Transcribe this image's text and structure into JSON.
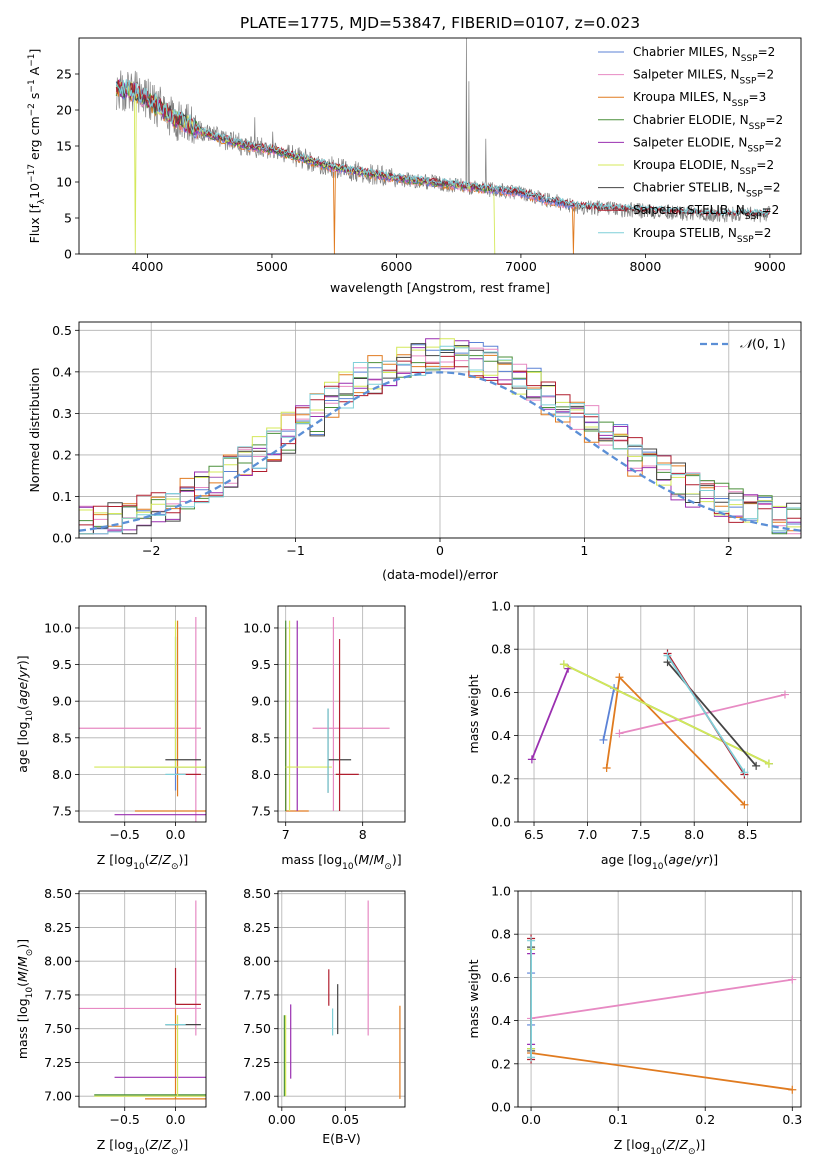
{
  "figure_title": "PLATE=1775, MJD=53847, FIBERID=0107, z=0.023",
  "colors": {
    "Chabrier MILES": "#5b82d6",
    "Salpeter MILES": "#e78ac3",
    "Kroupa MILES": "#e07b20",
    "Chabrier ELODIE": "#4a8f3a",
    "Salpeter ELODIE": "#9a2fb0",
    "Kroupa ELODIE": "#d4e85a",
    "Chabrier STELIB": "#444444",
    "Salpeter STELIB": "#b01e2e",
    "Kroupa STELIB": "#7fcfd8",
    "data": "#808080",
    "normal": "#5b8fd6"
  },
  "chart_data": [
    {
      "id": "spectrum",
      "type": "line",
      "title": "PLATE=1775, MJD=53847, FIBERID=0107, z=0.023",
      "xlabel": "wavelength [Angstrom, rest frame]",
      "ylabel": "Flux [fλ10⁻¹⁷ erg cm⁻² s⁻¹ A⁻¹]",
      "xlim": [
        3450,
        9250
      ],
      "ylim": [
        0,
        30
      ],
      "xticks": [
        4000,
        5000,
        6000,
        7000,
        8000,
        9000
      ],
      "yticks": [
        0,
        5,
        10,
        15,
        20,
        25
      ],
      "grid": false,
      "legend_position": "top-right",
      "legend": [
        "Chabrier MILES, N_SSP=2",
        "Salpeter MILES, N_SSP=2",
        "Kroupa MILES, N_SSP=3",
        "Chabrier ELODIE, N_SSP=2",
        "Salpeter ELODIE, N_SSP=2",
        "Kroupa ELODIE, N_SSP=2",
        "Chabrier STELIB, N_SSP=2",
        "Salpeter STELIB, N_SSP=2",
        "Kroupa STELIB, N_SSP=2"
      ],
      "model_continuum": {
        "x": [
          3750,
          3900,
          4000,
          4200,
          4500,
          4800,
          5000,
          5500,
          6000,
          6500,
          7000,
          7200,
          7500,
          8000,
          8500,
          9000
        ],
        "y": [
          23,
          22.5,
          21.5,
          19,
          16.5,
          15,
          14.5,
          12,
          10.5,
          9.5,
          8.5,
          7.5,
          6.5,
          6.0,
          5.5,
          5.5
        ]
      },
      "emission_lines": [
        {
          "x": 6563,
          "y": 30
        },
        {
          "x": 6583,
          "y": 24
        },
        {
          "x": 4861,
          "y": 19
        },
        {
          "x": 6717,
          "y": 16
        },
        {
          "x": 5007,
          "y": 17
        }
      ],
      "model_dropouts": [
        {
          "x": 3900,
          "label": "Kroupa ELODIE"
        },
        {
          "x": 5500,
          "label": "Kroupa MILES"
        },
        {
          "x": 6790,
          "label": "Kroupa ELODIE"
        },
        {
          "x": 7420,
          "label": "Kroupa MILES"
        }
      ]
    },
    {
      "id": "residuals",
      "type": "line",
      "xlabel": "(data-model)/error",
      "ylabel": "Normed distribution",
      "xlim": [
        -2.5,
        2.5
      ],
      "ylim": [
        0,
        0.52
      ],
      "xticks": [
        -2,
        -1,
        0,
        1,
        2
      ],
      "yticks": [
        0.0,
        0.1,
        0.2,
        0.3,
        0.4,
        0.5
      ],
      "grid": true,
      "legend_position": "top-right",
      "legend": [
        "𝒩(0, 1)"
      ],
      "normal": {
        "mean": 0,
        "sigma": 1
      }
    },
    {
      "id": "age-vs-Z",
      "type": "scatter",
      "xlabel": "Z [log₁₀(Z/Z⊙)]",
      "ylabel": "age  [log₁₀(age/yr)]",
      "xlim": [
        -0.95,
        0.3
      ],
      "ylim": [
        7.35,
        10.3
      ],
      "xticks": [
        -0.5,
        0.0
      ],
      "yticks": [
        7.5,
        8.0,
        8.5,
        9.0,
        9.5,
        10.0
      ],
      "grid": true,
      "points": [
        {
          "model": "Chabrier MILES",
          "x": 0.0,
          "y": 9.88,
          "xerr": [
            0.0,
            0.0
          ],
          "yerr": [
            2.1,
            0.0
          ]
        },
        {
          "model": "Chabrier MILES",
          "x": 0.0,
          "y": 8.12,
          "xerr": [
            0.0,
            0.0
          ],
          "yerr": [
            0.0,
            0.0
          ]
        },
        {
          "model": "Salpeter MILES",
          "x": 0.0,
          "y": 8.63,
          "xerr": [
            0.95,
            0.25
          ],
          "yerr": [
            0.0,
            0.0
          ]
        },
        {
          "model": "Salpeter MILES",
          "x": 0.2,
          "y": 7.6,
          "xerr": [
            0.0,
            0.0
          ],
          "yerr": [
            0.3,
            2.55
          ]
        },
        {
          "model": "Kroupa MILES",
          "x": 0.0,
          "y": 7.5,
          "xerr": [
            0.4,
            0.3
          ],
          "yerr": [
            0.0,
            0.0
          ]
        },
        {
          "model": "Kroupa MILES",
          "x": 0.02,
          "y": 8.8,
          "xerr": [
            0.0,
            0.0
          ],
          "yerr": [
            1.1,
            1.3
          ]
        },
        {
          "model": "Chabrier ELODIE",
          "x": 0.0,
          "y": 8.1,
          "xerr": [
            0.45,
            0.3
          ],
          "yerr": [
            0.0,
            0.0
          ]
        },
        {
          "model": "Salpeter ELODIE",
          "x": -0.1,
          "y": 7.45,
          "xerr": [
            0.5,
            0.4
          ],
          "yerr": [
            0.0,
            0.0
          ]
        },
        {
          "model": "Kroupa ELODIE",
          "x": 0.0,
          "y": 8.1,
          "xerr": [
            0.8,
            0.35
          ],
          "yerr": [
            0.0,
            2.0
          ]
        },
        {
          "model": "Chabrier STELIB",
          "x": 0.0,
          "y": 8.2,
          "xerr": [
            0.1,
            0.25
          ],
          "yerr": [
            0.0,
            0.0
          ]
        },
        {
          "model": "Salpeter STELIB",
          "x": 0.0,
          "y": 8.0,
          "xerr": [
            0.0,
            0.25
          ],
          "yerr": [
            0.0,
            0.0
          ]
        },
        {
          "model": "Kroupa STELIB",
          "x": 0.0,
          "y": 8.0,
          "xerr": [
            0.1,
            0.1
          ],
          "yerr": [
            0.0,
            0.0
          ]
        }
      ]
    },
    {
      "id": "age-vs-mass",
      "type": "scatter",
      "xlabel": "mass [log₁₀(M/M⊙)]",
      "ylabel": "",
      "xlim": [
        6.9,
        8.55
      ],
      "ylim": [
        7.35,
        10.3
      ],
      "xticks": [
        7,
        8
      ],
      "yticks": [
        7.5,
        8.0,
        8.5,
        9.0,
        9.5,
        10.0
      ],
      "grid": true,
      "points": [
        {
          "model": "Salpeter MILES",
          "x": 7.85,
          "y": 8.63,
          "xerr": [
            0.5,
            0.5
          ],
          "yerr": [
            0.0,
            0.0
          ]
        },
        {
          "model": "Salpeter MILES",
          "x": 7.62,
          "y": 8.8,
          "xerr": [
            0.0,
            0.0
          ],
          "yerr": [
            1.3,
            1.35
          ]
        },
        {
          "model": "Kroupa MILES",
          "x": 7.0,
          "y": 8.8,
          "xerr": [
            0.0,
            0.0
          ],
          "yerr": [
            1.3,
            1.2
          ]
        },
        {
          "model": "Kroupa MILES",
          "x": 7.3,
          "y": 7.5,
          "xerr": [
            0.3,
            0.0
          ],
          "yerr": [
            0.0,
            0.0
          ]
        },
        {
          "model": "Chabrier ELODIE",
          "x": 7.0,
          "y": 8.8,
          "xerr": [
            0.0,
            0.0
          ],
          "yerr": [
            1.3,
            1.3
          ]
        },
        {
          "model": "Salpeter ELODIE",
          "x": 7.15,
          "y": 8.8,
          "xerr": [
            0.0,
            0.0
          ],
          "yerr": [
            1.3,
            1.3
          ]
        },
        {
          "model": "Kroupa ELODIE",
          "x": 7.05,
          "y": 8.8,
          "xerr": [
            0.0,
            0.0
          ],
          "yerr": [
            1.3,
            1.3
          ]
        },
        {
          "model": "Kroupa ELODIE",
          "x": 7.3,
          "y": 8.1,
          "xerr": [
            0.3,
            0.3
          ],
          "yerr": [
            0.0,
            0.0
          ]
        },
        {
          "model": "Chabrier STELIB",
          "x": 7.55,
          "y": 8.8,
          "xerr": [
            0.0,
            0.0
          ],
          "yerr": [
            1.05,
            0.1
          ]
        },
        {
          "model": "Chabrier STELIB",
          "x": 7.7,
          "y": 8.2,
          "xerr": [
            0.15,
            0.15
          ],
          "yerr": [
            0.0,
            0.0
          ]
        },
        {
          "model": "Salpeter STELIB",
          "x": 7.7,
          "y": 8.7,
          "xerr": [
            0.0,
            0.0
          ],
          "yerr": [
            1.2,
            1.15
          ]
        },
        {
          "model": "Salpeter STELIB",
          "x": 7.8,
          "y": 8.0,
          "xerr": [
            0.15,
            0.15
          ],
          "yerr": [
            0.0,
            0.0
          ]
        },
        {
          "model": "Kroupa STELIB",
          "x": 7.55,
          "y": 8.8,
          "xerr": [
            0.0,
            0.0
          ],
          "yerr": [
            1.05,
            0.1
          ]
        }
      ]
    },
    {
      "id": "weight-vs-age",
      "type": "line",
      "xlabel": "age  [log₁₀(age/yr)]",
      "ylabel": "mass weight",
      "xlim": [
        6.35,
        9.0
      ],
      "ylim": [
        0,
        1.0
      ],
      "xticks": [
        6.5,
        7.0,
        7.5,
        8.0,
        8.5
      ],
      "yticks": [
        0.0,
        0.2,
        0.4,
        0.6,
        0.8,
        1.0
      ],
      "grid": true,
      "series": [
        {
          "model": "Chabrier MILES",
          "x": [
            7.15,
            7.25
          ],
          "y": [
            0.38,
            0.62
          ]
        },
        {
          "model": "Salpeter MILES",
          "x": [
            7.3,
            8.85
          ],
          "y": [
            0.41,
            0.59
          ]
        },
        {
          "model": "Kroupa MILES",
          "x": [
            7.18,
            7.3,
            8.47
          ],
          "y": [
            0.25,
            0.67,
            0.08
          ]
        },
        {
          "model": "Chabrier ELODIE",
          "x": [
            6.78,
            8.7
          ],
          "y": [
            0.73,
            0.27
          ]
        },
        {
          "model": "Salpeter ELODIE",
          "x": [
            6.48,
            6.82
          ],
          "y": [
            0.29,
            0.71
          ]
        },
        {
          "model": "Kroupa ELODIE",
          "x": [
            6.78,
            8.7
          ],
          "y": [
            0.73,
            0.27
          ]
        },
        {
          "model": "Chabrier STELIB",
          "x": [
            7.75,
            8.58
          ],
          "y": [
            0.74,
            0.26
          ]
        },
        {
          "model": "Salpeter STELIB",
          "x": [
            7.75,
            8.47
          ],
          "y": [
            0.78,
            0.22
          ]
        },
        {
          "model": "Kroupa STELIB",
          "x": [
            7.75,
            8.47
          ],
          "y": [
            0.77,
            0.23
          ]
        }
      ]
    },
    {
      "id": "mass-vs-Z",
      "type": "scatter",
      "xlabel": "Z [log₁₀(Z/Z⊙)]",
      "ylabel": "mass [log₁₀(M/M⊙)]",
      "xlim": [
        -0.95,
        0.3
      ],
      "ylim": [
        6.92,
        8.52
      ],
      "xticks": [
        -0.5,
        0.0
      ],
      "yticks": [
        7.0,
        7.25,
        7.5,
        7.75,
        8.0,
        8.25,
        8.5
      ],
      "grid": true,
      "points": [
        {
          "model": "Salpeter MILES",
          "x": 0.0,
          "y": 7.65,
          "xerr": [
            0.95,
            0.25
          ],
          "yerr": [
            0.0,
            0.0
          ]
        },
        {
          "model": "Salpeter MILES",
          "x": 0.2,
          "y": 7.9,
          "xerr": [
            0.0,
            0.0
          ],
          "yerr": [
            0.45,
            0.55
          ]
        },
        {
          "model": "Kroupa MILES",
          "x": 0.0,
          "y": 6.98,
          "xerr": [
            0.3,
            0.3
          ],
          "yerr": [
            0.0,
            0.0
          ]
        },
        {
          "model": "Kroupa MILES",
          "x": 0.0,
          "y": 7.3,
          "xerr": [
            0.0,
            0.0
          ],
          "yerr": [
            0.32,
            0.35
          ]
        },
        {
          "model": "Chabrier ELODIE",
          "x": 0.0,
          "y": 7.01,
          "xerr": [
            0.8,
            0.3
          ],
          "yerr": [
            0.0,
            0.0
          ]
        },
        {
          "model": "Salpeter ELODIE",
          "x": -0.1,
          "y": 7.14,
          "xerr": [
            0.5,
            0.4
          ],
          "yerr": [
            0.0,
            0.0
          ]
        },
        {
          "model": "Kroupa ELODIE",
          "x": 0.0,
          "y": 7.0,
          "xerr": [
            0.8,
            0.35
          ],
          "yerr": [
            0.0,
            0.0
          ]
        },
        {
          "model": "Kroupa ELODIE",
          "x": 0.02,
          "y": 7.3,
          "xerr": [
            0.0,
            0.0
          ],
          "yerr": [
            0.3,
            0.3
          ]
        },
        {
          "model": "Chabrier STELIB",
          "x": 0.0,
          "y": 7.53,
          "xerr": [
            0.1,
            0.25
          ],
          "yerr": [
            0.0,
            0.0
          ]
        },
        {
          "model": "Salpeter STELIB",
          "x": 0.0,
          "y": 7.68,
          "xerr": [
            0.0,
            0.25
          ],
          "yerr": [
            0.0,
            0.0
          ]
        },
        {
          "model": "Salpeter STELIB",
          "x": 0.0,
          "y": 7.8,
          "xerr": [
            0.0,
            0.0
          ],
          "yerr": [
            0.12,
            0.15
          ]
        },
        {
          "model": "Kroupa STELIB",
          "x": 0.0,
          "y": 7.53,
          "xerr": [
            0.1,
            0.1
          ],
          "yerr": [
            0.0,
            0.0
          ]
        }
      ]
    },
    {
      "id": "mass-vs-ebv",
      "type": "scatter",
      "xlabel": "E(B-V)",
      "ylabel": "",
      "xlim": [
        -0.003,
        0.097
      ],
      "ylim": [
        6.92,
        8.52
      ],
      "xticks": [
        0.0,
        0.05
      ],
      "yticks": [
        7.0,
        7.25,
        7.5,
        7.75,
        8.0,
        8.25,
        8.5
      ],
      "grid": true,
      "points": [
        {
          "model": "Chabrier ELODIE",
          "x": 0.002,
          "y": 7.3,
          "yerr": [
            0.3,
            0.3
          ]
        },
        {
          "model": "Kroupa ELODIE",
          "x": 0.003,
          "y": 7.3,
          "yerr": [
            0.3,
            0.3
          ]
        },
        {
          "model": "Salpeter ELODIE",
          "x": 0.007,
          "y": 7.4,
          "yerr": [
            0.27,
            0.28
          ]
        },
        {
          "model": "Salpeter STELIB",
          "x": 0.037,
          "y": 7.8,
          "yerr": [
            0.13,
            0.14
          ]
        },
        {
          "model": "Kroupa STELIB",
          "x": 0.04,
          "y": 7.55,
          "yerr": [
            0.1,
            0.1
          ]
        },
        {
          "model": "Chabrier STELIB",
          "x": 0.044,
          "y": 7.58,
          "yerr": [
            0.12,
            0.25
          ]
        },
        {
          "model": "Salpeter MILES",
          "x": 0.068,
          "y": 7.95,
          "yerr": [
            0.5,
            0.5
          ]
        },
        {
          "model": "Kroupa MILES",
          "x": 0.093,
          "y": 7.3,
          "yerr": [
            0.32,
            0.37
          ]
        }
      ]
    },
    {
      "id": "weight-vs-Z",
      "type": "line",
      "xlabel": "Z [log₁₀(Z/Z⊙)]",
      "ylabel": "mass weight",
      "xlim": [
        -0.015,
        0.31
      ],
      "ylim": [
        0,
        1.0
      ],
      "xticks": [
        0.0,
        0.1,
        0.2,
        0.3
      ],
      "yticks": [
        0.0,
        0.2,
        0.4,
        0.6,
        0.8,
        1.0
      ],
      "grid": true,
      "series": [
        {
          "model": "Salpeter MILES",
          "x": [
            0.0,
            0.3
          ],
          "y": [
            0.41,
            0.59
          ]
        },
        {
          "model": "Kroupa MILES",
          "x": [
            0.0,
            0.3
          ],
          "y": [
            0.25,
            0.08
          ]
        },
        {
          "model": "Chabrier MILES",
          "x": [
            0.0,
            0.0
          ],
          "y": [
            0.38,
            0.62
          ]
        },
        {
          "model": "Chabrier ELODIE",
          "x": [
            0.0,
            0.0
          ],
          "y": [
            0.27,
            0.73
          ]
        },
        {
          "model": "Salpeter ELODIE",
          "x": [
            0.0,
            0.0
          ],
          "y": [
            0.29,
            0.71
          ]
        },
        {
          "model": "Kroupa ELODIE",
          "x": [
            0.0,
            0.0
          ],
          "y": [
            0.27,
            0.73
          ]
        },
        {
          "model": "Chabrier STELIB",
          "x": [
            0.0,
            0.0
          ],
          "y": [
            0.26,
            0.74
          ]
        },
        {
          "model": "Salpeter STELIB",
          "x": [
            0.0,
            0.0
          ],
          "y": [
            0.22,
            0.78
          ]
        },
        {
          "model": "Kroupa STELIB",
          "x": [
            0.0,
            0.0
          ],
          "y": [
            0.23,
            0.77
          ]
        }
      ]
    }
  ]
}
